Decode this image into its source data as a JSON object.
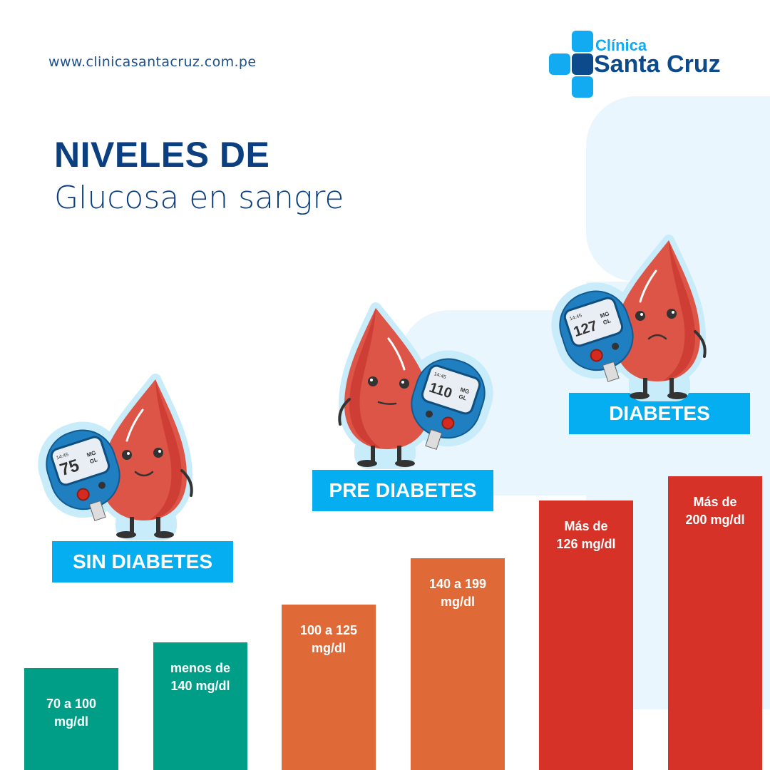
{
  "header": {
    "url": "www.clinicasantacruz.com.pe"
  },
  "logo": {
    "line1": "Clínica",
    "line2": "Santa Cruz"
  },
  "title": {
    "line1": "NIVELES DE",
    "line2": "Glucosa en sangre"
  },
  "categories": [
    {
      "label": "SIN DIABETES",
      "meter": {
        "time": "14:45",
        "value": "75",
        "unit_top": "MG",
        "unit_bottom": "GL"
      }
    },
    {
      "label": "PRE DIABETES",
      "meter": {
        "time": "14:45",
        "value": "110",
        "unit_top": "MG",
        "unit_bottom": "GL"
      }
    },
    {
      "label": "DIABETES",
      "meter": {
        "time": "14:45",
        "value": "127",
        "unit_top": "MG",
        "unit_bottom": "GL"
      }
    }
  ],
  "bars": [
    {
      "text": "70 a 100\nmg/dl",
      "color": "#009e87"
    },
    {
      "text": "menos de\n140 mg/dl",
      "color": "#009e87"
    },
    {
      "text": "100 a 125\nmg/dl",
      "color": "#df6a37"
    },
    {
      "text": "140 a 199\nmg/dl",
      "color": "#df6a37"
    },
    {
      "text": "Más de\n126 mg/dl",
      "color": "#d63228"
    },
    {
      "text": "Más de\n200 mg/dl",
      "color": "#d63228"
    }
  ]
}
